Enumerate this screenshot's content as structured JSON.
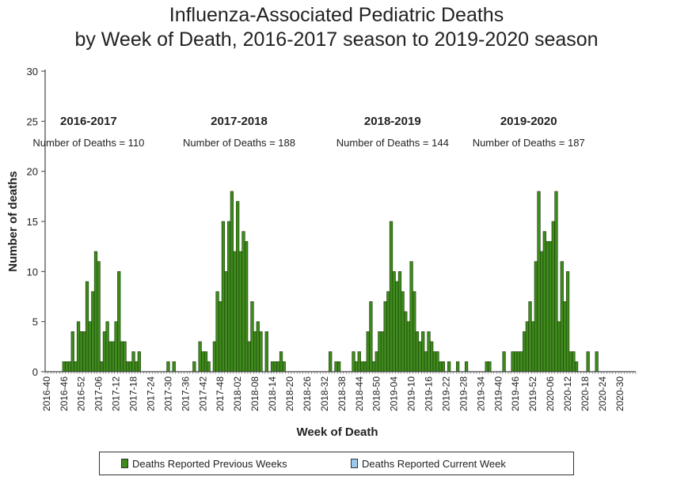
{
  "chart_data": {
    "type": "bar",
    "title": "Influenza-Associated Pediatric Deaths",
    "subtitle": "by Week of Death, 2016-2017 season to 2019-2020 season",
    "xlabel": "Week of Death",
    "ylabel": "Number of deaths",
    "ylim": [
      0,
      30
    ],
    "yticks": [
      0,
      5,
      10,
      15,
      20,
      25,
      30
    ],
    "x_tick_labels": [
      "2016-40",
      "2016-46",
      "2016-52",
      "2017-06",
      "2017-12",
      "2017-18",
      "2017-24",
      "2017-30",
      "2017-36",
      "2017-42",
      "2017-48",
      "2018-02",
      "2018-08",
      "2018-14",
      "2018-20",
      "2018-26",
      "2018-32",
      "2018-38",
      "2018-44",
      "2018-50",
      "2019-04",
      "2019-10",
      "2019-16",
      "2019-22",
      "2019-28",
      "2019-34",
      "2019-40",
      "2019-46",
      "2019-52",
      "2020-06",
      "2020-12",
      "2020-18",
      "2020-24",
      "2020-30"
    ],
    "series": [
      {
        "name": "Deaths Reported Previous Weeks",
        "color": "#3e8a1c",
        "values": [
          0,
          0,
          0,
          0,
          0,
          0,
          1,
          1,
          1,
          4,
          1,
          5,
          4,
          4,
          9,
          5,
          8,
          12,
          11,
          1,
          4,
          5,
          3,
          3,
          5,
          10,
          3,
          3,
          1,
          1,
          2,
          1,
          2,
          0,
          0,
          0,
          0,
          0,
          0,
          0,
          0,
          0,
          1,
          0,
          1,
          0,
          0,
          0,
          0,
          0,
          0,
          1,
          0,
          3,
          2,
          2,
          1,
          0,
          3,
          8,
          7,
          15,
          10,
          15,
          18,
          12,
          17,
          12,
          14,
          13,
          3,
          7,
          4,
          5,
          4,
          0,
          4,
          0,
          1,
          1,
          1,
          2,
          1,
          0,
          0,
          0,
          0,
          0,
          0,
          0,
          0,
          0,
          0,
          0,
          0,
          0,
          0,
          0,
          2,
          0,
          1,
          1,
          0,
          0,
          0,
          0,
          2,
          1,
          2,
          1,
          1,
          4,
          7,
          1,
          2,
          4,
          4,
          7,
          8,
          15,
          10,
          9,
          10,
          8,
          6,
          5,
          11,
          8,
          4,
          3,
          4,
          2,
          4,
          3,
          2,
          2,
          1,
          1,
          0,
          1,
          0,
          0,
          1,
          0,
          0,
          1,
          0,
          0,
          0,
          0,
          0,
          0,
          1,
          1,
          0,
          0,
          0,
          0,
          2,
          0,
          0,
          2,
          2,
          2,
          2,
          4,
          5,
          7,
          5,
          11,
          18,
          12,
          14,
          13,
          13,
          15,
          18,
          5,
          11,
          7,
          10,
          2,
          2,
          1,
          0,
          0,
          0,
          2,
          0,
          0,
          2,
          0,
          0,
          0,
          0,
          0,
          0,
          0,
          0,
          0,
          0,
          0,
          0,
          0
        ]
      },
      {
        "name": "Deaths Reported Current Week",
        "color": "#9cc8ec",
        "values": []
      }
    ],
    "annotations": [
      {
        "season": "2016-2017",
        "text": "Number of Deaths = 110",
        "center_week": 15
      },
      {
        "season": "2017-2018",
        "text": "Number of Deaths = 188",
        "center_week": 67
      },
      {
        "season": "2018-2019",
        "text": "Number of Deaths = 144",
        "center_week": 120
      },
      {
        "season": "2019-2020",
        "text": "Number of Deaths = 187",
        "center_week": 167
      }
    ]
  },
  "legend": {
    "items": [
      {
        "label": "Deaths Reported Previous Weeks",
        "color": "#3e8a1c"
      },
      {
        "label": "Deaths Reported Current Week",
        "color": "#9cc8ec"
      }
    ]
  }
}
